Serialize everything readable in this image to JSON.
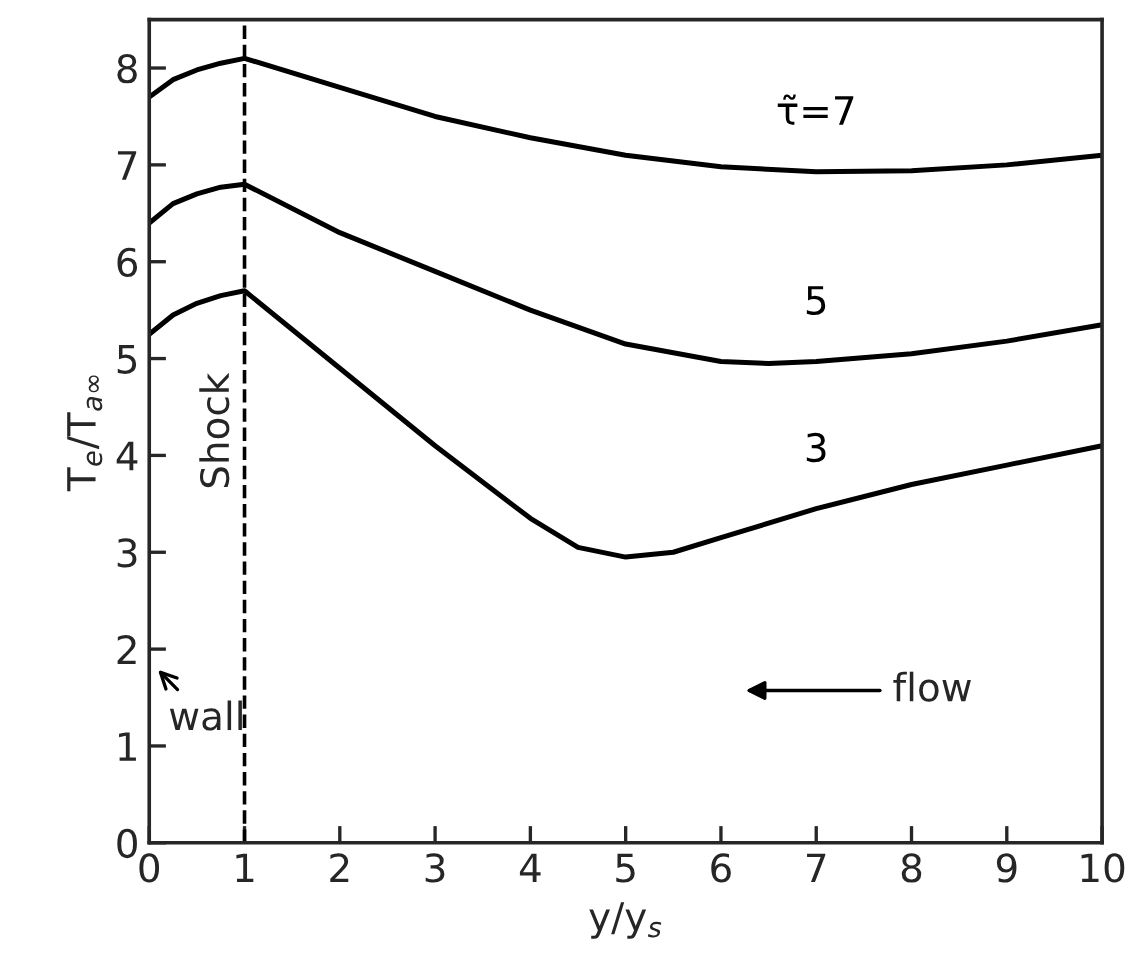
{
  "chart_data": {
    "type": "line",
    "xlabel": "y/y$_{s}$",
    "ylabel": "T$_{e}$/T$_{a∞}$",
    "xlim": [
      0,
      10
    ],
    "ylim": [
      0,
      8.5
    ],
    "xticks": [
      0,
      1,
      2,
      3,
      4,
      5,
      6,
      7,
      8,
      9,
      10
    ],
    "yticks": [
      0,
      1,
      2,
      3,
      4,
      5,
      6,
      7,
      8
    ],
    "grid": false,
    "legend": false,
    "marker": "none",
    "line_style": "solid",
    "series": [
      {
        "name": "τ̃=7",
        "color": "#000000",
        "x": [
          0,
          0.25,
          0.5,
          0.75,
          1,
          2,
          3,
          4,
          5,
          6,
          7,
          8,
          9,
          10
        ],
        "values": [
          7.7,
          7.88,
          7.98,
          8.05,
          8.1,
          7.8,
          7.5,
          7.28,
          7.1,
          6.98,
          6.93,
          6.94,
          7.0,
          7.1
        ]
      },
      {
        "name": "5",
        "color": "#000000",
        "x": [
          0,
          0.25,
          0.5,
          0.75,
          1,
          2,
          3,
          4,
          5,
          6,
          6.5,
          7,
          8,
          9,
          10
        ],
        "values": [
          6.4,
          6.6,
          6.7,
          6.77,
          6.8,
          6.3,
          5.9,
          5.5,
          5.15,
          4.97,
          4.95,
          4.97,
          5.05,
          5.18,
          5.35
        ]
      },
      {
        "name": "3",
        "color": "#000000",
        "x": [
          0,
          0.25,
          0.5,
          0.75,
          1,
          2,
          3,
          4,
          4.5,
          5,
          5.5,
          6,
          7,
          8,
          9,
          10
        ],
        "values": [
          5.25,
          5.45,
          5.57,
          5.65,
          5.7,
          4.9,
          4.1,
          3.35,
          3.05,
          2.95,
          3.0,
          3.15,
          3.45,
          3.7,
          3.9,
          4.1
        ]
      }
    ],
    "ref_lines": [
      {
        "axis": "x",
        "value": 1,
        "label": "Shock",
        "color": "#000000",
        "line_style": "dashed"
      }
    ],
    "annotations": [
      "wall",
      "flow"
    ]
  }
}
